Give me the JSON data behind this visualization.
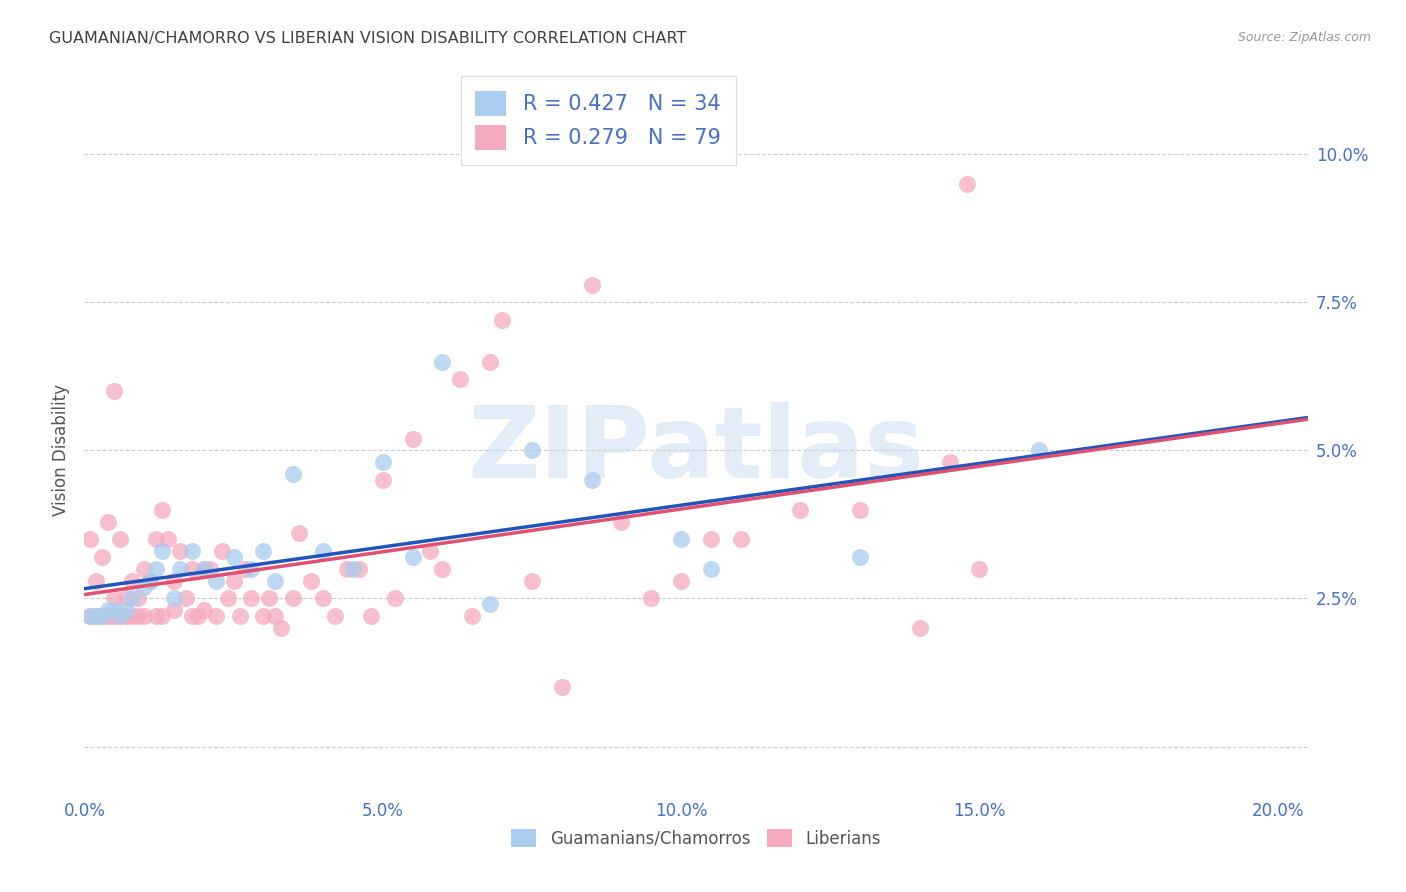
{
  "title": "GUAMANIAN/CHAMORRO VS LIBERIAN VISION DISABILITY CORRELATION CHART",
  "source": "Source: ZipAtlas.com",
  "ylabel": "Vision Disability",
  "xlim": [
    0.0,
    0.205
  ],
  "ylim": [
    -0.008,
    0.108
  ],
  "blue_R": 0.427,
  "blue_N": 34,
  "pink_R": 0.279,
  "pink_N": 79,
  "blue_color": "#aaccee",
  "pink_color": "#f5aabe",
  "blue_line_color": "#2255bb",
  "pink_line_color": "#e05070",
  "watermark": "ZIPatlas",
  "background_color": "#ffffff",
  "grid_color": "#cccccc",
  "title_color": "#404040",
  "axis_color": "#4472c4",
  "legend_labels": [
    "Guamanians/Chamorros",
    "Liberians"
  ],
  "blue_x": [
    0.001,
    0.002,
    0.003,
    0.004,
    0.005,
    0.006,
    0.007,
    0.008,
    0.01,
    0.011,
    0.012,
    0.013,
    0.015,
    0.016,
    0.018,
    0.02,
    0.022,
    0.025,
    0.028,
    0.03,
    0.032,
    0.035,
    0.04,
    0.045,
    0.05,
    0.055,
    0.06,
    0.068,
    0.075,
    0.085,
    0.1,
    0.105,
    0.13,
    0.16
  ],
  "blue_y": [
    0.022,
    0.022,
    0.022,
    0.023,
    0.023,
    0.022,
    0.023,
    0.025,
    0.027,
    0.028,
    0.03,
    0.033,
    0.025,
    0.03,
    0.033,
    0.03,
    0.028,
    0.032,
    0.03,
    0.033,
    0.028,
    0.046,
    0.033,
    0.03,
    0.048,
    0.032,
    0.065,
    0.024,
    0.05,
    0.045,
    0.035,
    0.03,
    0.032,
    0.05
  ],
  "pink_x": [
    0.001,
    0.001,
    0.002,
    0.002,
    0.003,
    0.003,
    0.004,
    0.004,
    0.005,
    0.005,
    0.005,
    0.006,
    0.006,
    0.007,
    0.007,
    0.008,
    0.008,
    0.009,
    0.009,
    0.01,
    0.01,
    0.011,
    0.012,
    0.012,
    0.013,
    0.013,
    0.014,
    0.015,
    0.015,
    0.016,
    0.017,
    0.018,
    0.018,
    0.019,
    0.02,
    0.02,
    0.021,
    0.022,
    0.023,
    0.024,
    0.025,
    0.026,
    0.027,
    0.028,
    0.03,
    0.031,
    0.032,
    0.033,
    0.035,
    0.036,
    0.038,
    0.04,
    0.042,
    0.044,
    0.046,
    0.048,
    0.05,
    0.052,
    0.055,
    0.058,
    0.06,
    0.063,
    0.065,
    0.068,
    0.07,
    0.075,
    0.08,
    0.085,
    0.09,
    0.095,
    0.1,
    0.105,
    0.11,
    0.12,
    0.13,
    0.14,
    0.145,
    0.148,
    0.15
  ],
  "pink_y": [
    0.022,
    0.035,
    0.022,
    0.028,
    0.022,
    0.032,
    0.022,
    0.038,
    0.022,
    0.025,
    0.06,
    0.022,
    0.035,
    0.022,
    0.025,
    0.022,
    0.028,
    0.022,
    0.025,
    0.022,
    0.03,
    0.028,
    0.022,
    0.035,
    0.022,
    0.04,
    0.035,
    0.023,
    0.028,
    0.033,
    0.025,
    0.022,
    0.03,
    0.022,
    0.023,
    0.03,
    0.03,
    0.022,
    0.033,
    0.025,
    0.028,
    0.022,
    0.03,
    0.025,
    0.022,
    0.025,
    0.022,
    0.02,
    0.025,
    0.036,
    0.028,
    0.025,
    0.022,
    0.03,
    0.03,
    0.022,
    0.045,
    0.025,
    0.052,
    0.033,
    0.03,
    0.062,
    0.022,
    0.065,
    0.072,
    0.028,
    0.01,
    0.078,
    0.038,
    0.025,
    0.028,
    0.035,
    0.035,
    0.04,
    0.04,
    0.02,
    0.048,
    0.095,
    0.03
  ]
}
